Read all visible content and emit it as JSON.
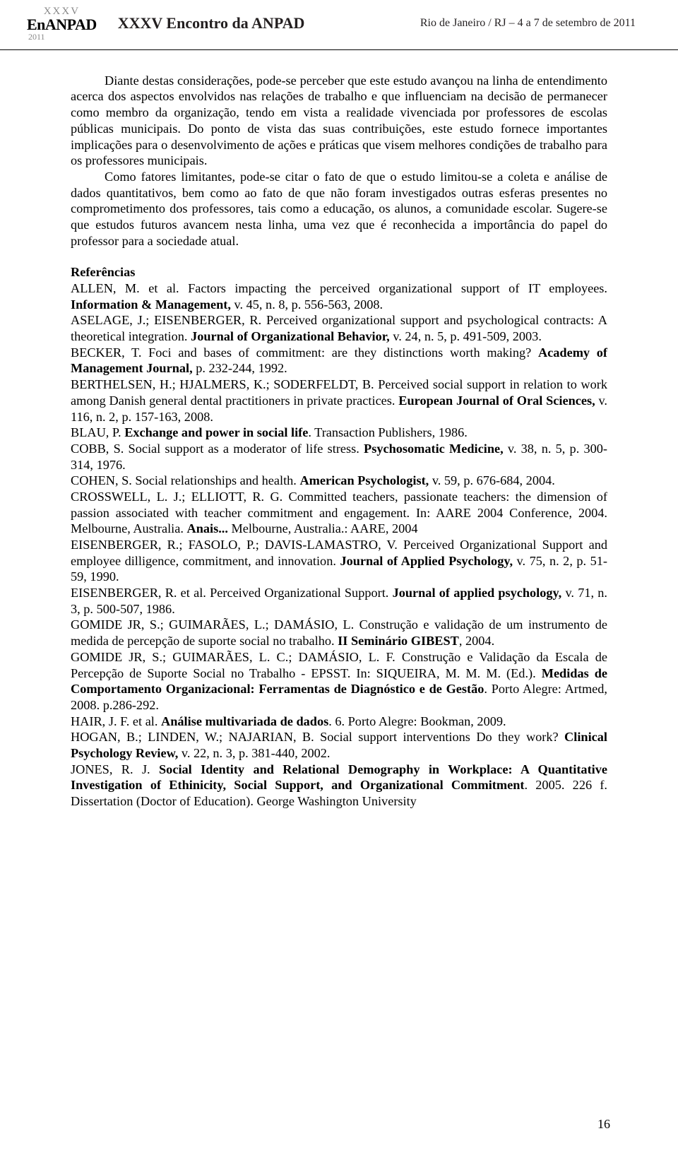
{
  "header": {
    "logo_top": "XXXV",
    "logo_main": "EnANPAD",
    "logo_year": "2011",
    "title": "XXXV Encontro da ANPAD",
    "right": "Rio de Janeiro / RJ – 4 a 7 de setembro de 2011"
  },
  "body": {
    "p1": "Diante destas considerações, pode-se perceber que este estudo avançou na linha de entendimento acerca dos aspectos envolvidos nas relações de trabalho e que influenciam na decisão de permanecer como membro da organização, tendo em vista a realidade vivenciada por professores de escolas públicas municipais. Do ponto de vista das suas contribuições, este estudo fornece importantes implicações para o desenvolvimento de ações e práticas que visem melhores condições de trabalho para os professores municipais.",
    "p2": "Como fatores limitantes, pode-se citar o fato de que o estudo limitou-se a coleta e análise de dados quantitativos, bem como ao fato de que não foram investigados outras esferas presentes no comprometimento dos professores, tais como a educação, os alunos, a comunidade escolar. Sugere-se que estudos futuros avancem nesta linha, uma vez que é reconhecida a importância do papel do professor para a sociedade atual."
  },
  "refs": {
    "heading": "Referências",
    "r1a": "ALLEN, M.  et al. Factors impacting the perceived organizational support of IT employees. ",
    "r1b": "Information & Management, ",
    "r1c": "v. 45, n. 8, p. 556-563,  2008.",
    "r2a": "ASELAGE, J.; EISENBERGER, R. Perceived organizational support and psychological contracts: A theoretical integration. ",
    "r2b": "Journal of Organizational Behavior, ",
    "r2c": "v. 24, n. 5, p. 491-509,  2003.",
    "r3a": "BECKER, T. Foci and bases of commitment: are they distinctions worth making? ",
    "r3b": "Academy of Management Journal, ",
    "r3c": "p. 232-244,  1992.",
    "r4a": "BERTHELSEN, H.; HJALMERS, K.; SODERFELDT, B. Perceived social support in relation to work among Danish general dental practitioners in private practices. ",
    "r4b": "European Journal of Oral Sciences, ",
    "r4c": "v. 116, n. 2, p. 157-163,  2008.",
    "r5a": "BLAU, P. ",
    "r5b": "Exchange and power in social life",
    "r5c": ".   Transaction Publishers, 1986.",
    "r6a": "COBB, S. Social support as a moderator of life stress. ",
    "r6b": "Psychosomatic Medicine, ",
    "r6c": "v. 38, n. 5, p. 300-314,  1976.",
    "r7a": "COHEN, S. Social relationships and health. ",
    "r7b": "American Psychologist, ",
    "r7c": "v. 59, p. 676-684,  2004.",
    "r8a": "CROSSWELL, L. J.; ELLIOTT, R. G. Committed teachers, passionate teachers: the dimension of passion associated with teacher commitment and engagement. In: AARE 2004 Conference, 2004. Melbourne, Australia. ",
    "r8b": "Anais...",
    "r8c": " Melbourne, Australia.: AARE, 2004",
    "r9a": "EISENBERGER, R.; FASOLO, P.; DAVIS-LAMASTRO, V. Perceived Organizational Support and employee dilligence, commitment, and innovation. ",
    "r9b": "Journal of Applied Psychology, ",
    "r9c": "v. 75, n. 2, p. 51-59, 1990.",
    "r10a": "EISENBERGER, R.  et al. Perceived Organizational Support. ",
    "r10b": "Journal of applied psychology, ",
    "r10c": "v. 71, n. 3, p. 500-507,  1986.",
    "r11a": "GOMIDE JR, S.; GUIMARÃES, L.; DAMÁSIO, L. Construção e validação de um instrumento de medida de percepção de suporte social no trabalho. ",
    "r11b": "II Seminário GIBEST",
    "r11c": ",  2004.",
    "r12a": "GOMIDE JR, S.; GUIMARÃES, L. C.; DAMÁSIO, L. F. Construção e Validação da Escala de Percepção de Suporte Social no Trabalho - EPSST. In: SIQUEIRA, M. M. M. (Ed.). ",
    "r12b": "Medidas de Comportamento Organizacional: Ferramentas de Diagnóstico e de Gestão",
    "r12c": ". Porto Alegre: Artmed, 2008.  p.286-292.",
    "r13a": "HAIR, J. F.  et al. ",
    "r13b": "Análise multivariada de dados",
    "r13c": ". 6. Porto Alegre: Bookman, 2009.",
    "r14a": "HOGAN, B.; LINDEN, W.; NAJARIAN, B. Social support interventions Do they work? ",
    "r14b": "Clinical Psychology Review, ",
    "r14c": "v. 22, n. 3, p. 381-440,  2002.",
    "r15a": "JONES, R. J. ",
    "r15b": "Social Identity and Relational Demography in Workplace: A Quantitative Investigation of Ethinicity, Social Support, and Organizational Commitment",
    "r15c": ". 2005. 226 f. Dissertation (Doctor of Education). George Washington University"
  },
  "page": "16"
}
